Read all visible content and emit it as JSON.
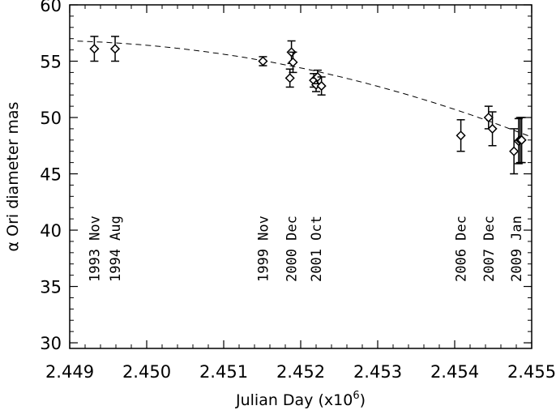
{
  "chart_data": {
    "type": "scatter",
    "xlabel": "Julian Day (x10",
    "xlabel_sup": "6",
    "xlabel_suffix": ")",
    "ylabel": "α Ori diameter mas",
    "xlim": [
      2449000,
      2455000
    ],
    "ylim": [
      29.5,
      60
    ],
    "grid": false,
    "x_ticks": [
      {
        "value": 2449000,
        "label": "2.449"
      },
      {
        "value": 2450000,
        "label": "2.450"
      },
      {
        "value": 2451000,
        "label": "2.451"
      },
      {
        "value": 2452000,
        "label": "2.452"
      },
      {
        "value": 2453000,
        "label": "2.453"
      },
      {
        "value": 2454000,
        "label": "2.454"
      },
      {
        "value": 2455000,
        "label": "2.455"
      }
    ],
    "y_ticks": [
      {
        "value": 30,
        "label": "30"
      },
      {
        "value": 35,
        "label": "35"
      },
      {
        "value": 40,
        "label": "40"
      },
      {
        "value": 45,
        "label": "45"
      },
      {
        "value": 50,
        "label": "50"
      },
      {
        "value": 55,
        "label": "55"
      },
      {
        "value": 60,
        "label": "60"
      }
    ],
    "points": [
      {
        "x": 2449320,
        "y": 56.1,
        "err": 1.1
      },
      {
        "x": 2449590,
        "y": 56.1,
        "err": 1.1
      },
      {
        "x": 2451510,
        "y": 55.0,
        "err": 0.4
      },
      {
        "x": 2451860,
        "y": 53.5,
        "err": 0.8
      },
      {
        "x": 2451880,
        "y": 55.8,
        "err": 1.0
      },
      {
        "x": 2451900,
        "y": 54.9,
        "err": 0.9
      },
      {
        "x": 2452170,
        "y": 53.3,
        "err": 0.6
      },
      {
        "x": 2452200,
        "y": 52.9,
        "err": 0.6
      },
      {
        "x": 2452220,
        "y": 53.6,
        "err": 0.6
      },
      {
        "x": 2452270,
        "y": 52.8,
        "err": 0.8
      },
      {
        "x": 2454080,
        "y": 48.4,
        "err": 1.4
      },
      {
        "x": 2454440,
        "y": 50.0,
        "err": 1.0
      },
      {
        "x": 2454490,
        "y": 49.0,
        "err": 1.5
      },
      {
        "x": 2454770,
        "y": 47.0,
        "err": 2.0
      },
      {
        "x": 2454830,
        "y": 47.9,
        "err": 2.0
      },
      {
        "x": 2454850,
        "y": 48.0,
        "err": 2.0
      },
      {
        "x": 2454870,
        "y": 48.0,
        "err": 2.0
      }
    ],
    "fit": {
      "x0": 2449000,
      "a": 56.8,
      "b": -0.000176,
      "c": -2.08e-07
    },
    "epochs": [
      {
        "x": 2449320,
        "label": "1993 Nov"
      },
      {
        "x": 2449590,
        "label": "1994 Aug"
      },
      {
        "x": 2451510,
        "label": "1999 Nov"
      },
      {
        "x": 2451880,
        "label": "2000 Dec"
      },
      {
        "x": 2452200,
        "label": "2001 Oct"
      },
      {
        "x": 2454080,
        "label": "2006 Dec"
      },
      {
        "x": 2454440,
        "label": "2007 Dec"
      },
      {
        "x": 2454800,
        "label": "2009 Jan"
      }
    ]
  }
}
